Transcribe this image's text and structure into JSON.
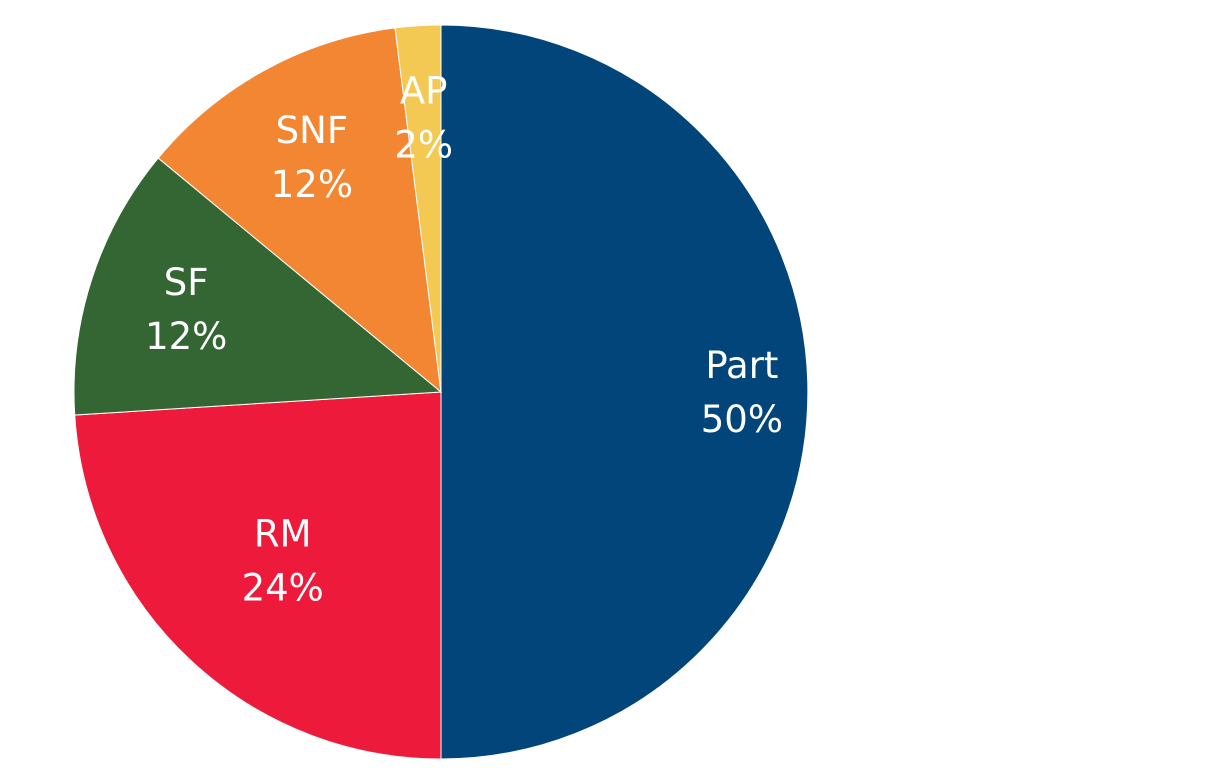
{
  "chart_data": {
    "type": "pie",
    "title": "",
    "start_angle_deg": 0,
    "direction": "clockwise",
    "legend": "none",
    "slices": [
      {
        "name": "Part",
        "value": 50,
        "value_label": "50%",
        "color": "#01457a"
      },
      {
        "name": "RM",
        "value": 24,
        "value_label": "24%",
        "color": "#ed1a3b"
      },
      {
        "name": "SF",
        "value": 12,
        "value_label": "12%",
        "color": "#336633"
      },
      {
        "name": "SNF",
        "value": 12,
        "value_label": "12%",
        "color": "#f28633"
      },
      {
        "name": "AP",
        "value": 2,
        "value_label": "2%",
        "color": "#f3c853"
      }
    ]
  }
}
